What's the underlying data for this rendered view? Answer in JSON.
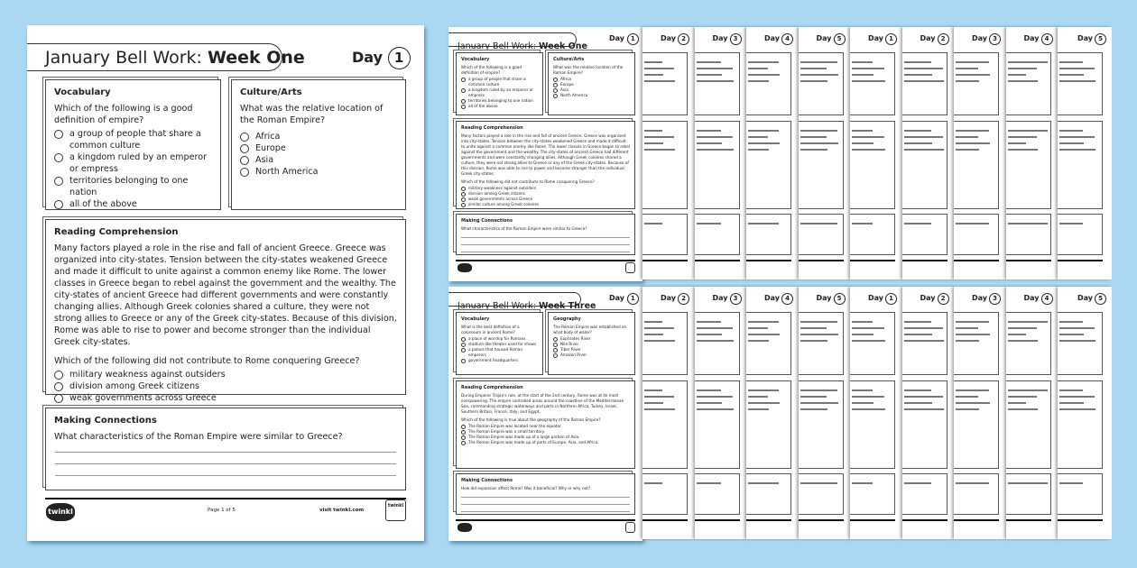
{
  "main_page": {
    "title_prefix": "January Bell Work: ",
    "title_week": "Week One",
    "day_label": "Day",
    "day_number": "1",
    "vocabulary": {
      "heading": "Vocabulary",
      "question": "Which of the following is a good definition of empire?",
      "options": [
        "a group of people that share a common culture",
        "a kingdom ruled by an emperor or empress",
        "territories belonging to one nation",
        "all of the above"
      ]
    },
    "culture": {
      "heading": "Culture/Arts",
      "question": "What was the relative location of the Roman Empire?",
      "options": [
        "Africa",
        "Europe",
        "Asia",
        "North America"
      ]
    },
    "reading": {
      "heading": "Reading Comprehension",
      "passage": "Many factors played a role in the rise and fall of ancient Greece. Greece was organized into city-states. Tension between the city-states weakened Greece and made it difficult to unite against a common enemy like Rome. The lower classes in Greece began to rebel against the government and the wealthy. The city-states of ancient Greece had different governments and were constantly changing allies. Although Greek colonies shared a culture, they were not strong allies to Greece or any of the Greek city-states. Because of this division, Rome was able to rise to power and become stronger than the individual Greek city-states.",
      "question": "Which of the following did not contribute to Rome conquering Greece?",
      "options": [
        "military weakness against outsiders",
        "division among Greek citizens",
        "weak governments across Greece",
        "similar culture among Greek colonies"
      ]
    },
    "connections": {
      "heading": "Making Connections",
      "question": "What characteristics of the Roman Empire were similar to Greece?"
    },
    "footer": {
      "logo": "twinkl",
      "page": "Page 1 of 5",
      "site": "visit twinkl.com",
      "badge": "twinkl"
    }
  },
  "week_three_page": {
    "title_prefix": "January Bell Work: ",
    "title_week": "Week Three",
    "day_label": "Day",
    "day_number": "1",
    "vocabulary": {
      "heading": "Vocabulary",
      "question": "What is the best definition of a colosseum in ancient Rome?",
      "options": [
        "a place of worship for Romans",
        "stadium-like theater used for shows",
        "a palace that housed Roman emperors",
        "government headquarters"
      ]
    },
    "geography": {
      "heading": "Geography",
      "question": "The Roman Empire was established on what body of water?",
      "options": [
        "Euphrates River",
        "Nile River",
        "Tiber River",
        "Amazon River"
      ]
    },
    "reading": {
      "heading": "Reading Comprehension",
      "passage": "During Emperor Trajan's rule, at the start of the 2nd century, Rome was at its most overpowering. The empire controlled areas around the coastline of the Mediterranean Sea, commanding strategic waterways and ports in Northern Africa, Turkey, Israel, Southern Britain, France, Italy, and Egypt.",
      "question": "Which of the following is true about the geography of the Roman Empire?",
      "options": [
        "The Roman Empire was located near the equator.",
        "The Roman Empire was a small territory.",
        "The Roman Empire was made up of a large portion of Asia.",
        "The Roman Empire was made up of parts of Europe, Asia, and Africa."
      ]
    },
    "connections": {
      "heading": "Making Connections",
      "question": "How did expansion affect Rome? Was it beneficial? Why or why not?"
    }
  },
  "strip_days": [
    "2",
    "3",
    "4",
    "5",
    "1",
    "2",
    "3",
    "4",
    "5"
  ],
  "colors": {
    "background": "#aad8f2",
    "page": "#ffffff",
    "ink": "#222222"
  }
}
